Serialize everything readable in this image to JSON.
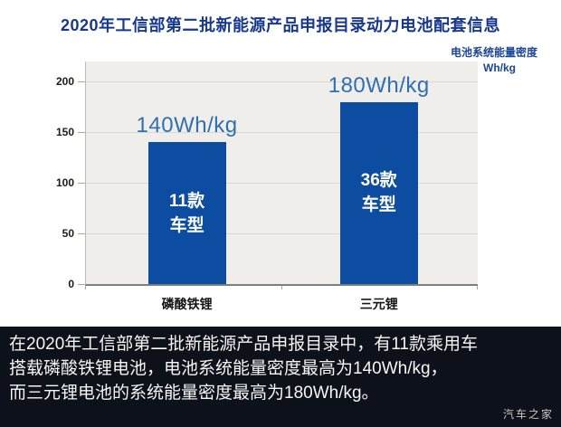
{
  "page": {
    "title": "2020年工信部第二批新能源产品申报目录动力电池配套信息"
  },
  "unit_note": {
    "line1": "电池系统能量密度",
    "line2": "单位：Wh/kg"
  },
  "chart_data": {
    "type": "bar",
    "title": "2020年工信部第二批新能源产品申报目录动力电池配套信息",
    "categories": [
      "磷酸铁锂",
      "三元锂"
    ],
    "values": [
      140,
      180
    ],
    "value_labels": [
      "140Wh/kg",
      "180Wh/kg"
    ],
    "bar_inner_labels": [
      [
        "11款",
        "车型"
      ],
      [
        "36款",
        "车型"
      ]
    ],
    "ylabel": "电池系统能量密度",
    "y_unit": "Wh/kg",
    "yticks": [
      0,
      50,
      100,
      150,
      200
    ],
    "ylim": [
      0,
      220
    ],
    "grid": true,
    "legend_position": "none",
    "bar_color": "#0d4da1"
  },
  "footer": {
    "lines": [
      "在2020年工信部第二批新能源产品申报目录中，有11款乘用车",
      "搭载磷酸铁锂电池，电池系统能量密度最高为140Wh/kg，",
      "而三元锂电池的系统能量密度最高为180Wh/kg。"
    ],
    "watermark": "汽车之家"
  },
  "colors": {
    "title": "#17388c",
    "unit_note": "#1a4697",
    "bar": "#0d4da1",
    "value_label": "#2f6fb2",
    "plot_bg": "#efeeeb",
    "gridline": "#d9d8d5",
    "banner_bg": "#0d1119",
    "banner_text": "#f5f5f5"
  }
}
